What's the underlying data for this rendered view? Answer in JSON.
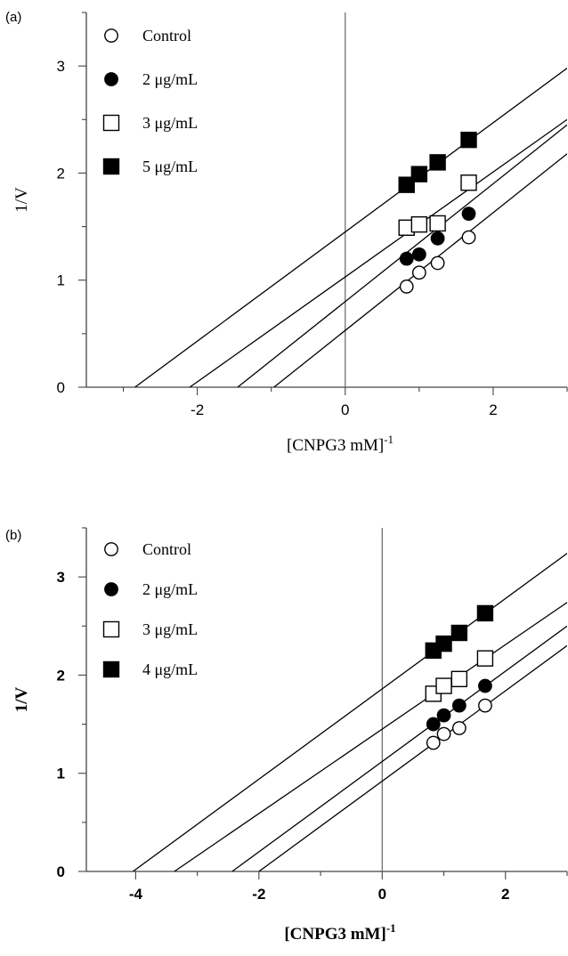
{
  "chart_data": [
    {
      "type": "scatter",
      "panel_label": "(a)",
      "xlabel": "[CNPG3 mM]",
      "xlabel_sup": "-1",
      "ylabel": "1/V",
      "xlim": [
        -3.5,
        3.0
      ],
      "ylim": [
        0,
        3.5
      ],
      "x_ticks": [
        -2,
        0,
        2
      ],
      "y_ticks": [
        0,
        1,
        2,
        3
      ],
      "grid": false,
      "legend_position": "top-left",
      "series": [
        {
          "name": "Control",
          "marker": "open-circle",
          "x": [
            0.83,
            1.0,
            1.25,
            1.67
          ],
          "y": [
            0.94,
            1.07,
            1.16,
            1.4
          ],
          "fit": {
            "slope": 0.55,
            "intercept": 0.53
          }
        },
        {
          "name": "2 μg/mL",
          "marker": "filled-circle",
          "x": [
            0.83,
            1.0,
            1.25,
            1.67
          ],
          "y": [
            1.2,
            1.24,
            1.39,
            1.62
          ],
          "fit": {
            "slope": 0.55,
            "intercept": 0.8
          }
        },
        {
          "name": "3 μg/mL",
          "marker": "open-square",
          "x": [
            0.83,
            1.0,
            1.25,
            1.67
          ],
          "y": [
            1.49,
            1.52,
            1.53,
            1.91
          ],
          "fit": {
            "slope": 0.49,
            "intercept": 1.03
          }
        },
        {
          "name": "5 μg/mL",
          "marker": "filled-square",
          "x": [
            0.83,
            1.0,
            1.25,
            1.67
          ],
          "y": [
            1.89,
            1.99,
            2.1,
            2.31
          ],
          "fit": {
            "slope": 0.51,
            "intercept": 1.45
          }
        }
      ]
    },
    {
      "type": "scatter",
      "panel_label": "(b)",
      "xlabel": "[CNPG3 mM]",
      "xlabel_sup": "-1",
      "ylabel": "1/V",
      "xlim": [
        -4.8,
        3.0
      ],
      "ylim": [
        0,
        3.5
      ],
      "x_ticks": [
        -4,
        -2,
        0,
        2
      ],
      "y_ticks": [
        0,
        1,
        2,
        3
      ],
      "grid": false,
      "legend_position": "top-left",
      "series": [
        {
          "name": "Control",
          "marker": "open-circle",
          "x": [
            0.83,
            1.0,
            1.25,
            1.67
          ],
          "y": [
            1.31,
            1.4,
            1.46,
            1.69
          ],
          "fit": {
            "slope": 0.46,
            "intercept": 0.92
          }
        },
        {
          "name": "2 μg/mL",
          "marker": "filled-circle",
          "x": [
            0.83,
            1.0,
            1.25,
            1.67
          ],
          "y": [
            1.5,
            1.59,
            1.69,
            1.89
          ],
          "fit": {
            "slope": 0.46,
            "intercept": 1.12
          }
        },
        {
          "name": "3 μg/mL",
          "marker": "open-square",
          "x": [
            0.83,
            1.0,
            1.25,
            1.67
          ],
          "y": [
            1.81,
            1.89,
            1.96,
            2.17
          ],
          "fit": {
            "slope": 0.43,
            "intercept": 1.45
          }
        },
        {
          "name": "4 μg/mL",
          "marker": "filled-square",
          "x": [
            0.83,
            1.0,
            1.25,
            1.67
          ],
          "y": [
            2.25,
            2.32,
            2.43,
            2.63
          ],
          "fit": {
            "slope": 0.46,
            "intercept": 1.86
          }
        }
      ]
    }
  ]
}
